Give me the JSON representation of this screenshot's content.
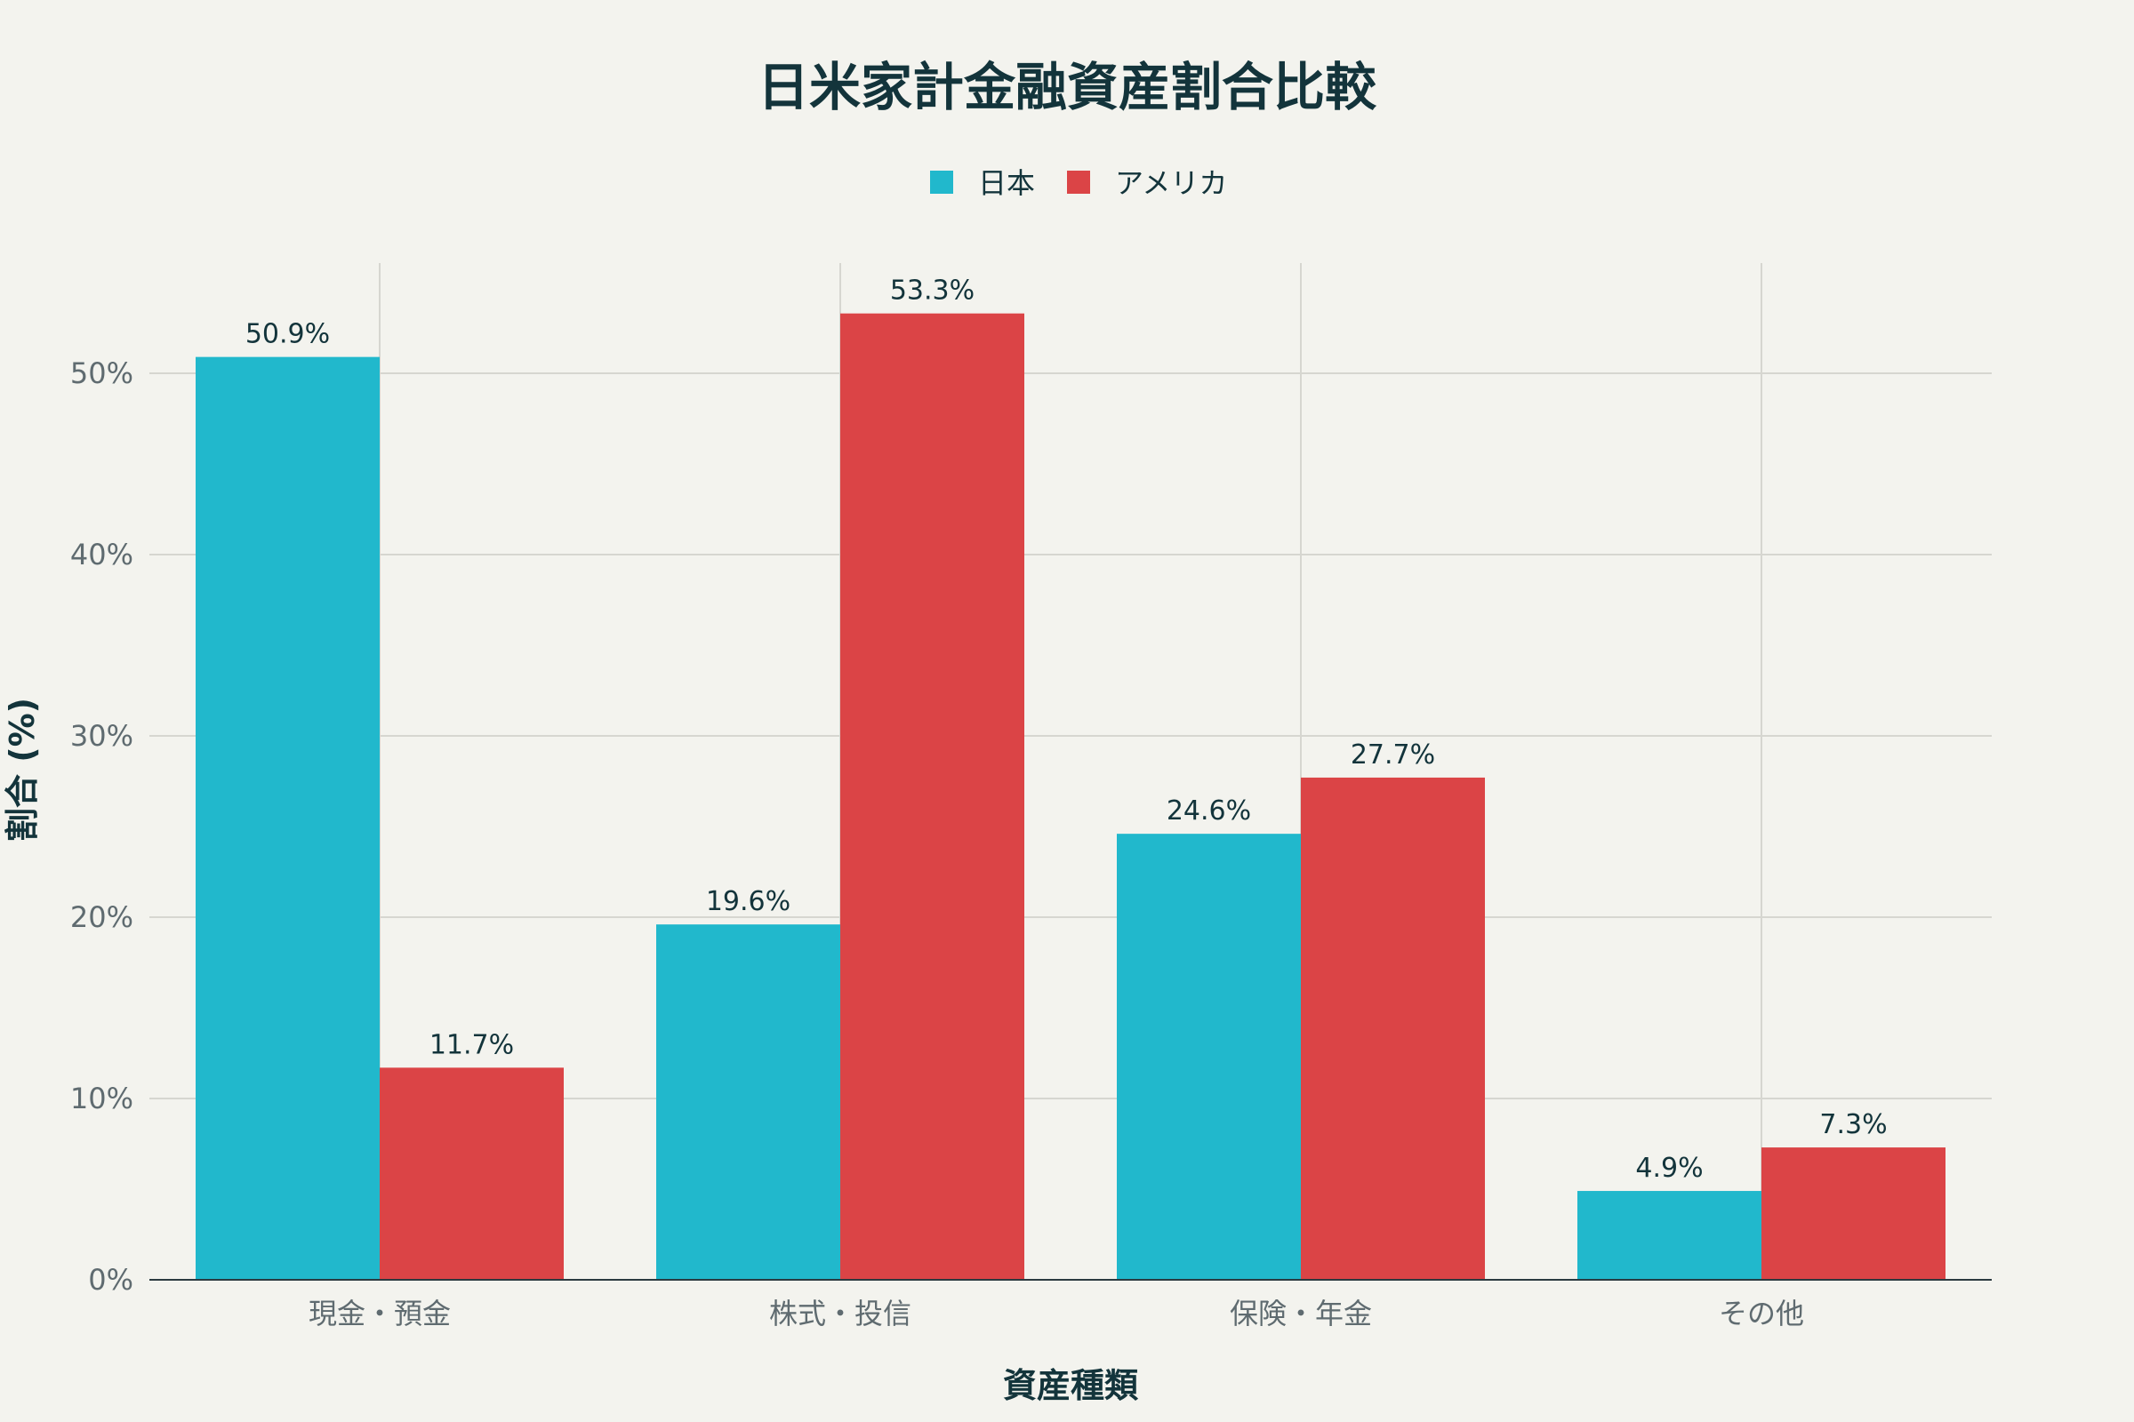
{
  "chart_data": {
    "type": "bar",
    "title": "日米家計金融資産割合比較",
    "xlabel": "資産種類",
    "ylabel": "割合 (%)",
    "categories": [
      "現金・預金",
      "株式・投信",
      "保険・年金",
      "その他"
    ],
    "series": [
      {
        "name": "日本",
        "values": [
          50.9,
          19.6,
          24.6,
          4.9
        ],
        "color": "#21b8cc"
      },
      {
        "name": "アメリカ",
        "values": [
          11.7,
          53.3,
          27.7,
          7.3
        ],
        "color": "#db4446"
      }
    ],
    "data_labels": [
      [
        "50.9%",
        "19.6%",
        "24.6%",
        "4.9%"
      ],
      [
        "11.7%",
        "53.3%",
        "27.7%",
        "7.3%"
      ]
    ],
    "yticks": [
      0,
      10,
      20,
      30,
      40,
      50
    ],
    "ytick_labels": [
      "0%",
      "10%",
      "20%",
      "30%",
      "40%",
      "50%"
    ],
    "ylim": [
      0,
      56
    ],
    "grid": true,
    "legend_position": "top-center"
  }
}
